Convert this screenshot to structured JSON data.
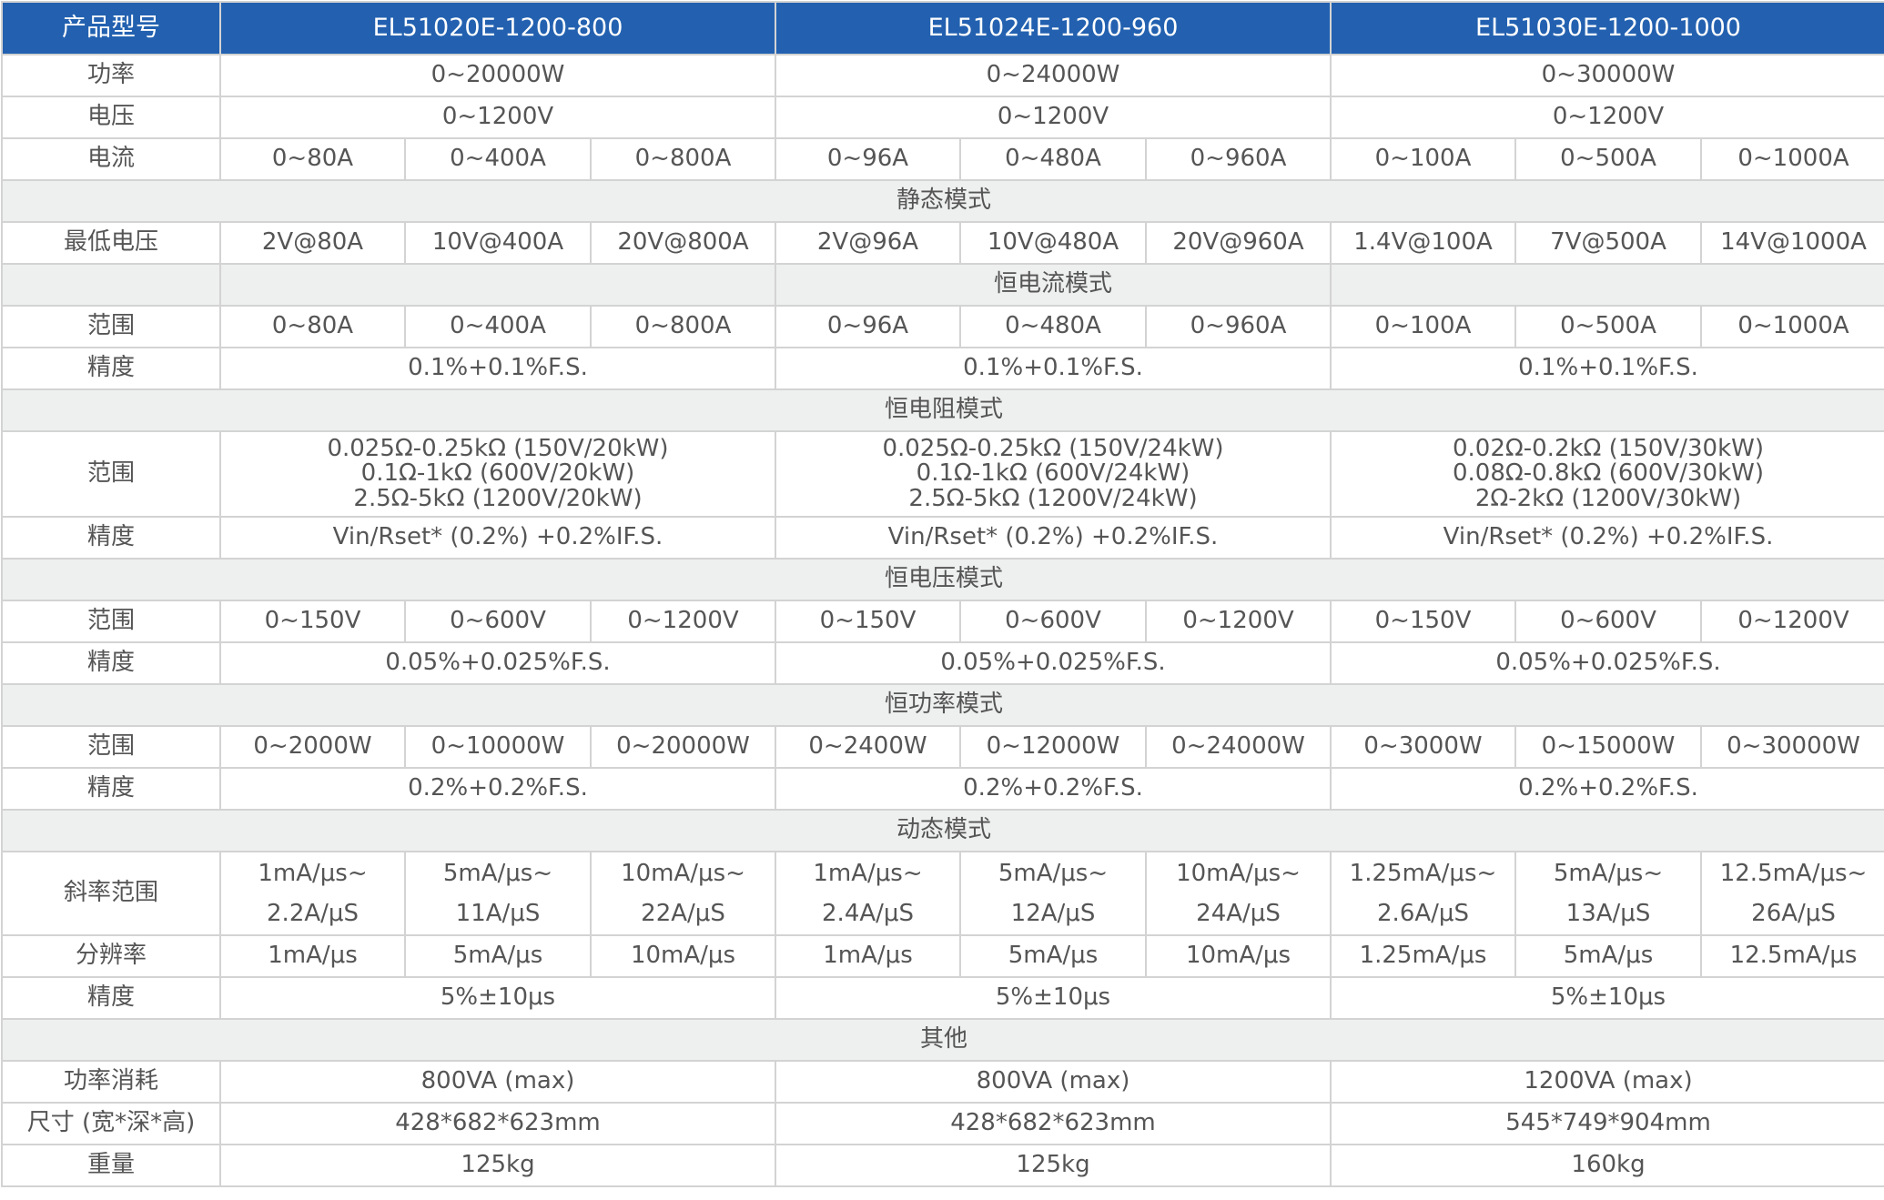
{
  "colors": {
    "header_bg": "#2361b0",
    "section_bg": "#eeefef",
    "border": "#d3d3d3",
    "text": "#555555"
  },
  "header": {
    "label": "产品型号",
    "models": [
      "EL51020E-1200-800",
      "EL51024E-1200-960",
      "EL51030E-1200-1000"
    ]
  },
  "rows": [
    {
      "type": "data",
      "label": "功率",
      "cells": [
        {
          "text": "0~20000W",
          "span": 3
        },
        {
          "text": "0~24000W",
          "span": 3
        },
        {
          "text": "0~30000W",
          "span": 3
        }
      ]
    },
    {
      "type": "data",
      "label": "电压",
      "cells": [
        {
          "text": "0~1200V",
          "span": 3
        },
        {
          "text": "0~1200V",
          "span": 3
        },
        {
          "text": "0~1200V",
          "span": 3
        }
      ]
    },
    {
      "type": "data",
      "label": "电流",
      "cells": [
        {
          "text": "0~80A",
          "span": 1
        },
        {
          "text": "0~400A",
          "span": 1
        },
        {
          "text": "0~800A",
          "span": 1
        },
        {
          "text": "0~96A",
          "span": 1
        },
        {
          "text": "0~480A",
          "span": 1
        },
        {
          "text": "0~960A",
          "span": 1
        },
        {
          "text": "0~100A",
          "span": 1
        },
        {
          "text": "0~500A",
          "span": 1
        },
        {
          "text": "0~1000A",
          "span": 1
        }
      ]
    },
    {
      "type": "section",
      "label": "静态模式"
    },
    {
      "type": "data",
      "label": "最低电压",
      "cells": [
        {
          "text": "2V@80A",
          "span": 1
        },
        {
          "text": "10V@400A",
          "span": 1
        },
        {
          "text": "20V@800A",
          "span": 1
        },
        {
          "text": "2V@96A",
          "span": 1
        },
        {
          "text": "10V@480A",
          "span": 1
        },
        {
          "text": "20V@960A",
          "span": 1
        },
        {
          "text": "1.4V@100A",
          "span": 1
        },
        {
          "text": "7V@500A",
          "span": 1
        },
        {
          "text": "14V@1000A",
          "span": 1
        }
      ]
    },
    {
      "type": "section-split",
      "label": "恒电流模式"
    },
    {
      "type": "data",
      "label": "范围",
      "cells": [
        {
          "text": "0~80A",
          "span": 1
        },
        {
          "text": "0~400A",
          "span": 1
        },
        {
          "text": "0~800A",
          "span": 1
        },
        {
          "text": "0~96A",
          "span": 1
        },
        {
          "text": "0~480A",
          "span": 1
        },
        {
          "text": "0~960A",
          "span": 1
        },
        {
          "text": "0~100A",
          "span": 1
        },
        {
          "text": "0~500A",
          "span": 1
        },
        {
          "text": "0~1000A",
          "span": 1
        }
      ]
    },
    {
      "type": "data",
      "label": "精度",
      "cells": [
        {
          "text": "0.1%+0.1%F.S.",
          "span": 3
        },
        {
          "text": "0.1%+0.1%F.S.",
          "span": 3
        },
        {
          "text": "0.1%+0.1%F.S.",
          "span": 3
        }
      ]
    },
    {
      "type": "section",
      "label": "恒电阻模式"
    },
    {
      "type": "data",
      "label": "范围",
      "tall": true,
      "cells": [
        {
          "text": "0.025Ω-0.25kΩ (150V/20kW)\n0.1Ω-1kΩ (600V/20kW)\n2.5Ω-5kΩ (1200V/20kW)",
          "span": 3
        },
        {
          "text": "0.025Ω-0.25kΩ (150V/24kW)\n0.1Ω-1kΩ (600V/24kW)\n2.5Ω-5kΩ (1200V/24kW)",
          "span": 3
        },
        {
          "text": "0.02Ω-0.2kΩ (150V/30kW)\n0.08Ω-0.8kΩ (600V/30kW)\n2Ω-2kΩ (1200V/30kW)",
          "span": 3
        }
      ]
    },
    {
      "type": "data",
      "label": "精度",
      "cells": [
        {
          "text": "Vin/Rset* (0.2%) +0.2%IF.S.",
          "span": 3
        },
        {
          "text": "Vin/Rset* (0.2%) +0.2%IF.S.",
          "span": 3
        },
        {
          "text": "Vin/Rset* (0.2%) +0.2%IF.S.",
          "span": 3
        }
      ]
    },
    {
      "type": "section",
      "label": "恒电压模式"
    },
    {
      "type": "data",
      "label": "范围",
      "cells": [
        {
          "text": "0~150V",
          "span": 1
        },
        {
          "text": "0~600V",
          "span": 1
        },
        {
          "text": "0~1200V",
          "span": 1
        },
        {
          "text": "0~150V",
          "span": 1
        },
        {
          "text": "0~600V",
          "span": 1
        },
        {
          "text": "0~1200V",
          "span": 1
        },
        {
          "text": "0~150V",
          "span": 1
        },
        {
          "text": "0~600V",
          "span": 1
        },
        {
          "text": "0~1200V",
          "span": 1
        }
      ]
    },
    {
      "type": "data",
      "label": "精度",
      "cells": [
        {
          "text": "0.05%+0.025%F.S.",
          "span": 3
        },
        {
          "text": "0.05%+0.025%F.S.",
          "span": 3
        },
        {
          "text": "0.05%+0.025%F.S.",
          "span": 3
        }
      ]
    },
    {
      "type": "section",
      "label": "恒功率模式"
    },
    {
      "type": "data",
      "label": "范围",
      "cells": [
        {
          "text": "0~2000W",
          "span": 1
        },
        {
          "text": "0~10000W",
          "span": 1
        },
        {
          "text": "0~20000W",
          "span": 1
        },
        {
          "text": "0~2400W",
          "span": 1
        },
        {
          "text": "0~12000W",
          "span": 1
        },
        {
          "text": "0~24000W",
          "span": 1
        },
        {
          "text": "0~3000W",
          "span": 1
        },
        {
          "text": "0~15000W",
          "span": 1
        },
        {
          "text": "0~30000W",
          "span": 1
        }
      ]
    },
    {
      "type": "data",
      "label": "精度",
      "cells": [
        {
          "text": "0.2%+0.2%F.S.",
          "span": 3
        },
        {
          "text": "0.2%+0.2%F.S.",
          "span": 3
        },
        {
          "text": "0.2%+0.2%F.S.",
          "span": 3
        }
      ]
    },
    {
      "type": "section",
      "label": "动态模式"
    },
    {
      "type": "data",
      "label": "斜率范围",
      "tall2": true,
      "cells": [
        {
          "text": "1mA/μs~\n2.2A/μS",
          "span": 1
        },
        {
          "text": "5mA/μs~\n11A/μS",
          "span": 1
        },
        {
          "text": "10mA/μs~\n22A/μS",
          "span": 1
        },
        {
          "text": "1mA/μs~\n2.4A/μS",
          "span": 1
        },
        {
          "text": "5mA/μs~\n12A/μS",
          "span": 1
        },
        {
          "text": "10mA/μs~\n24A/μS",
          "span": 1
        },
        {
          "text": "1.25mA/μs~\n2.6A/μS",
          "span": 1
        },
        {
          "text": "5mA/μs~\n13A/μS",
          "span": 1
        },
        {
          "text": "12.5mA/μs~\n26A/μS",
          "span": 1
        }
      ]
    },
    {
      "type": "data",
      "label": "分辨率",
      "cells": [
        {
          "text": "1mA/μs",
          "span": 1
        },
        {
          "text": "5mA/μs",
          "span": 1
        },
        {
          "text": "10mA/μs",
          "span": 1
        },
        {
          "text": "1mA/μs",
          "span": 1
        },
        {
          "text": "5mA/μs",
          "span": 1
        },
        {
          "text": "10mA/μs",
          "span": 1
        },
        {
          "text": "1.25mA/μs",
          "span": 1
        },
        {
          "text": "5mA/μs",
          "span": 1
        },
        {
          "text": "12.5mA/μs",
          "span": 1
        }
      ]
    },
    {
      "type": "data",
      "label": "精度",
      "cells": [
        {
          "text": "5%±10μs",
          "span": 3
        },
        {
          "text": "5%±10μs",
          "span": 3
        },
        {
          "text": "5%±10μs",
          "span": 3
        }
      ]
    },
    {
      "type": "section",
      "label": "其他"
    },
    {
      "type": "data",
      "label": "功率消耗",
      "cells": [
        {
          "text": "800VA (max)",
          "span": 3
        },
        {
          "text": "800VA (max)",
          "span": 3
        },
        {
          "text": "1200VA (max)",
          "span": 3
        }
      ]
    },
    {
      "type": "data",
      "label": "尺寸 (宽*深*高)",
      "cells": [
        {
          "text": "428*682*623mm",
          "span": 3
        },
        {
          "text": "428*682*623mm",
          "span": 3
        },
        {
          "text": "545*749*904mm",
          "span": 3
        }
      ]
    },
    {
      "type": "data",
      "label": "重量",
      "cells": [
        {
          "text": "125kg",
          "span": 3
        },
        {
          "text": "125kg",
          "span": 3
        },
        {
          "text": "160kg",
          "span": 3
        }
      ]
    }
  ]
}
